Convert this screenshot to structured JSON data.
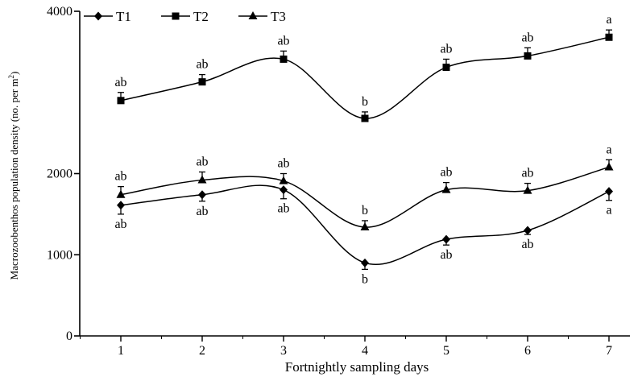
{
  "chart_data": {
    "type": "line",
    "title": "",
    "xlabel": "Fortnightly sampling days",
    "ylabel_main": "Macrozoobenthos population density (no. per m",
    "ylabel_sup": "2",
    "ylabel_close": ")",
    "categories": [
      "1",
      "2",
      "3",
      "4",
      "5",
      "6",
      "7"
    ],
    "y_ticks": [
      "0",
      "1000",
      "2000",
      "4000"
    ],
    "y_tick_values": [
      0,
      1000,
      2000,
      4000
    ],
    "ylim": [
      0,
      4000
    ],
    "grid": false,
    "legend_position": "top-left",
    "series": [
      {
        "name": "T1",
        "marker": "diamond",
        "values": [
          1610,
          1740,
          1800,
          900,
          1190,
          1300,
          1780
        ],
        "errors": [
          110,
          80,
          110,
          80,
          70,
          50,
          110
        ],
        "error_direction": "down",
        "letters": [
          "ab",
          "ab",
          "ab",
          "b",
          "ab",
          "ab",
          "a"
        ],
        "letter_position": "below"
      },
      {
        "name": "T2",
        "marker": "square",
        "values": [
          2900,
          3130,
          3410,
          2680,
          3310,
          3450,
          3680
        ],
        "errors": [
          100,
          90,
          100,
          80,
          100,
          100,
          90
        ],
        "error_direction": "up",
        "letters": [
          "ab",
          "ab",
          "ab",
          "b",
          "ab",
          "ab",
          "a"
        ],
        "letter_position": "above"
      },
      {
        "name": "T3",
        "marker": "triangle",
        "values": [
          1740,
          1920,
          1910,
          1340,
          1800,
          1790,
          2080
        ],
        "errors": [
          100,
          100,
          90,
          80,
          90,
          90,
          90
        ],
        "error_direction": "up",
        "letters": [
          "ab",
          "ab",
          "ab",
          "b",
          "ab",
          "ab",
          "a"
        ],
        "letter_position": "above"
      }
    ],
    "colors": {
      "line": "#000000",
      "background": "#ffffff"
    }
  }
}
